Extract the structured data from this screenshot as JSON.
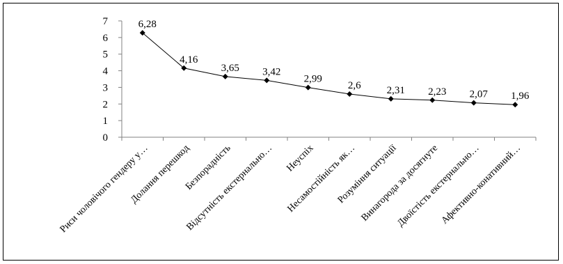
{
  "chart_data": {
    "type": "line",
    "categories": [
      "Риси чоловічого гендеру у…",
      "Долання перешкод",
      "Безпорадність",
      "Відсутність екстернально…",
      "Неуспіх",
      "Несамостійність як…",
      "Розуміння ситуації",
      "Винагорода за досягнуте",
      "Двоїстість екстернально…",
      "Афективно-конативний…"
    ],
    "values": [
      6.28,
      4.16,
      3.65,
      3.42,
      2.99,
      2.6,
      2.31,
      2.23,
      2.07,
      1.96
    ],
    "data_labels": [
      "6,28",
      "4,16",
      "3,65",
      "3,42",
      "2,99",
      "2,6",
      "2,31",
      "2,23",
      "2,07",
      "1,96"
    ],
    "y_ticks": [
      "0",
      "1",
      "2",
      "3",
      "4",
      "5",
      "6",
      "7"
    ],
    "ylim": [
      0,
      7
    ],
    "grid": false,
    "legend": "none",
    "colors": {
      "line": "#000000",
      "marker": "#000000",
      "axis": "#808080",
      "frame": "#000000"
    }
  }
}
